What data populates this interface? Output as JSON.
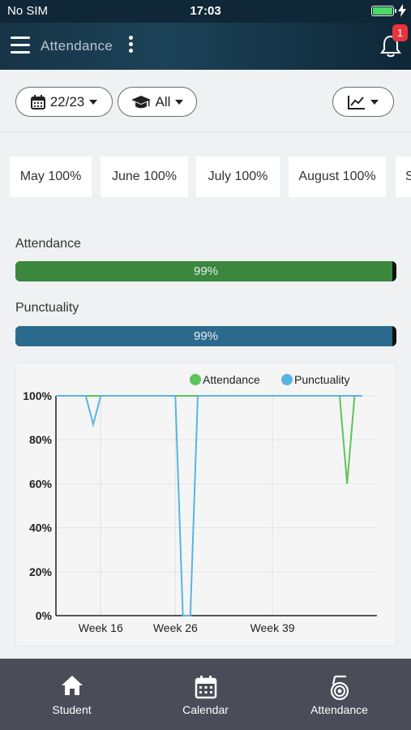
{
  "status_bar": {
    "carrier": "No SIM",
    "time": "17:03"
  },
  "navbar": {
    "title": "Attendance",
    "notification_count": "1"
  },
  "filters": {
    "year": "22/23",
    "scope": "All",
    "chart_icon": "line-chart-icon"
  },
  "months": [
    "May 100%",
    "June 100%",
    "July 100%",
    "August 100%",
    "S"
  ],
  "attendance": {
    "label": "Attendance",
    "value_text": "99%",
    "fraction": 0.99,
    "color": "#3a873d"
  },
  "punctuality": {
    "label": "Punctuality",
    "value_text": "99%",
    "fraction": 0.99,
    "color": "#2b6a8c"
  },
  "chart_data": {
    "type": "line",
    "y_ticks": [
      "100%",
      "80%",
      "60%",
      "40%",
      "20%",
      "0%"
    ],
    "ylim": [
      0,
      100
    ],
    "x_tick_labels": [
      "Week 16",
      "Week 26",
      "Week 39"
    ],
    "x_ticks": [
      16,
      26,
      39
    ],
    "xlim": [
      10,
      53
    ],
    "grid": true,
    "legend_position": "top-right",
    "series": [
      {
        "name": "Attendance",
        "color": "#5cc45a",
        "points": [
          [
            10,
            100
          ],
          [
            13,
            100
          ],
          [
            15,
            100
          ],
          [
            18,
            100
          ],
          [
            26,
            100
          ],
          [
            35,
            100
          ],
          [
            45,
            100
          ],
          [
            48,
            100
          ],
          [
            49,
            60
          ],
          [
            50,
            100
          ],
          [
            51,
            100
          ]
        ]
      },
      {
        "name": "Punctuality",
        "color": "#5ab4e0",
        "points": [
          [
            10,
            100
          ],
          [
            14,
            100
          ],
          [
            15,
            87
          ],
          [
            16,
            100
          ],
          [
            26,
            100
          ],
          [
            27,
            0
          ],
          [
            28,
            0
          ],
          [
            29,
            100
          ],
          [
            35,
            100
          ],
          [
            51,
            100
          ]
        ]
      }
    ]
  },
  "tabs": [
    {
      "label": "Student",
      "icon": "home-icon"
    },
    {
      "label": "Calendar",
      "icon": "calendar-icon"
    },
    {
      "label": "Attendance",
      "icon": "attendance-icon"
    }
  ]
}
